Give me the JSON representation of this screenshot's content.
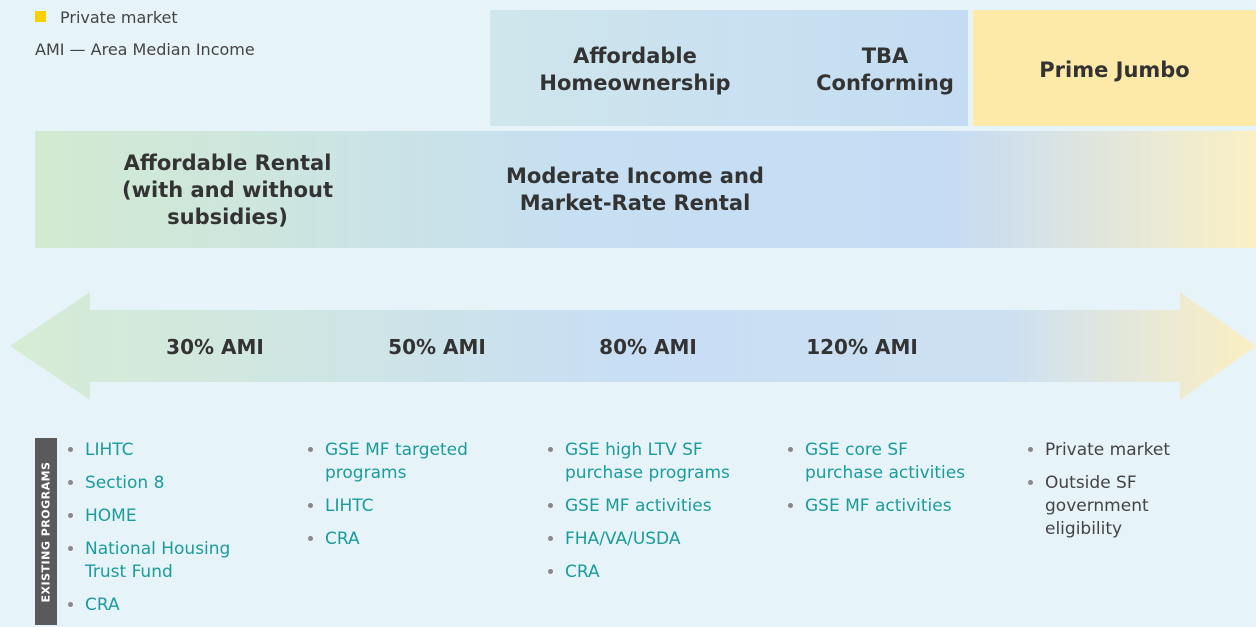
{
  "legend": {
    "private_market": "Private market",
    "ami_note": "AMI — Area Median Income"
  },
  "top_band": {
    "affordable_homeownership": "Affordable Homeownership",
    "tba_conforming": "TBA Conforming",
    "prime_jumbo": "Prime Jumbo"
  },
  "rental_band": {
    "affordable_rental": "Affordable Rental (with and without subsidies)",
    "moderate_income": "Moderate Income and Market-Rate Rental"
  },
  "ami_levels": [
    "30% AMI",
    "50% AMI",
    "80% AMI",
    "120% AMI"
  ],
  "programs": {
    "label": "EXISTING PROGRAMS",
    "columns": [
      [
        "LIHTC",
        "Section 8",
        "HOME",
        "National Housing Trust Fund",
        "CRA"
      ],
      [
        "GSE MF targeted programs",
        "LIHTC",
        "CRA"
      ],
      [
        "GSE high LTV SF purchase programs",
        "GSE MF activities",
        "FHA/VA/USDA",
        "CRA"
      ],
      [
        "GSE core SF purchase activities",
        "GSE MF activities"
      ],
      [
        "Private market",
        "Outside SF government eligibility"
      ]
    ]
  }
}
